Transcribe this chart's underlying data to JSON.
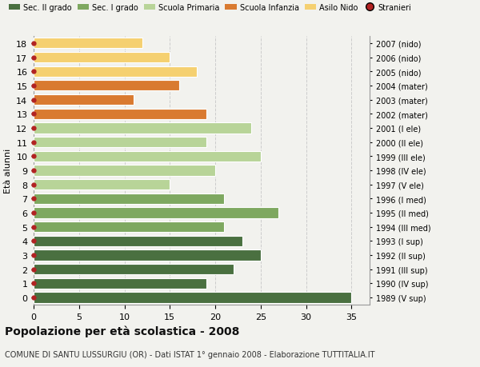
{
  "ages": [
    18,
    17,
    16,
    15,
    14,
    13,
    12,
    11,
    10,
    9,
    8,
    7,
    6,
    5,
    4,
    3,
    2,
    1,
    0
  ],
  "values": [
    35,
    19,
    22,
    25,
    23,
    21,
    27,
    21,
    15,
    20,
    25,
    19,
    24,
    19,
    11,
    16,
    18,
    15,
    12
  ],
  "right_labels": [
    "1989 (V sup)",
    "1990 (IV sup)",
    "1991 (III sup)",
    "1992 (II sup)",
    "1993 (I sup)",
    "1994 (III med)",
    "1995 (II med)",
    "1996 (I med)",
    "1997 (V ele)",
    "1998 (IV ele)",
    "1999 (III ele)",
    "2000 (II ele)",
    "2001 (I ele)",
    "2002 (mater)",
    "2003 (mater)",
    "2004 (mater)",
    "2005 (nido)",
    "2006 (nido)",
    "2007 (nido)"
  ],
  "bar_colors": [
    "#4a7040",
    "#4a7040",
    "#4a7040",
    "#4a7040",
    "#4a7040",
    "#7ea860",
    "#7ea860",
    "#7ea860",
    "#b8d498",
    "#b8d498",
    "#b8d498",
    "#b8d498",
    "#b8d498",
    "#d97a30",
    "#d97a30",
    "#d97a30",
    "#f5d070",
    "#f5d070",
    "#f5d070"
  ],
  "dot_color": "#b22222",
  "legend_labels": [
    "Sec. II grado",
    "Sec. I grado",
    "Scuola Primaria",
    "Scuola Infanzia",
    "Asilo Nido",
    "Stranieri"
  ],
  "legend_colors": [
    "#4a7040",
    "#7ea860",
    "#b8d498",
    "#d97a30",
    "#f5d070",
    "#b22222"
  ],
  "title": "Popolazione per età scolastica - 2008",
  "subtitle": "COMUNE DI SANTU LUSSURGIU (OR) - Dati ISTAT 1° gennaio 2008 - Elaborazione TUTTITALIA.IT",
  "ylabel_left": "Età alunni",
  "xlim": [
    0,
    37
  ],
  "xticks": [
    0,
    5,
    10,
    15,
    20,
    25,
    30,
    35
  ],
  "grid_color": "#cccccc",
  "bg_color": "#f2f2ee",
  "title_fontsize": 10,
  "subtitle_fontsize": 7
}
